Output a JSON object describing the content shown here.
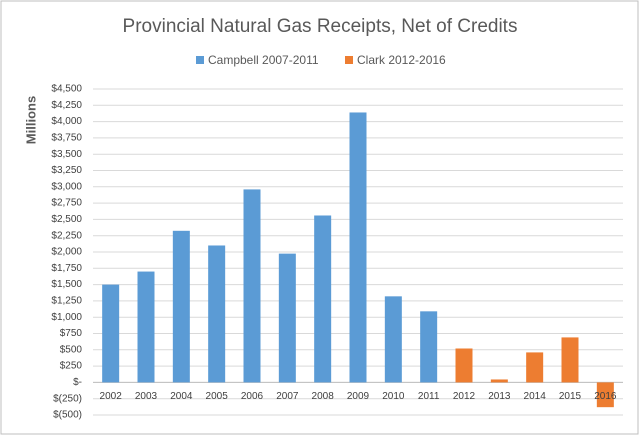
{
  "chart_data": {
    "type": "bar",
    "title": "Provincial Natural Gas Receipts, Net of Credits",
    "y_label": "Millions",
    "categories": [
      "2002",
      "2003",
      "2004",
      "2005",
      "2006",
      "2007",
      "2008",
      "2009",
      "2010",
      "2011",
      "2012",
      "2013",
      "2014",
      "2015",
      "2016"
    ],
    "series": [
      {
        "name": "Campbell 2007-2011",
        "color": "#5b9bd5",
        "values": [
          1500,
          1700,
          2325,
          2100,
          2960,
          1975,
          2560,
          4140,
          1320,
          1090,
          null,
          null,
          null,
          null,
          null
        ]
      },
      {
        "name": "Clark 2012-2016",
        "color": "#ed7d31",
        "values": [
          null,
          null,
          null,
          null,
          null,
          null,
          null,
          null,
          null,
          null,
          520,
          45,
          460,
          690,
          -380
        ]
      }
    ],
    "ylim": [
      -500,
      4500
    ],
    "yticks": [
      {
        "value": -500,
        "label": "$(500)"
      },
      {
        "value": -250,
        "label": "$(250)"
      },
      {
        "value": 0,
        "label": "$-"
      },
      {
        "value": 250,
        "label": "$250"
      },
      {
        "value": 500,
        "label": "$500"
      },
      {
        "value": 750,
        "label": "$750"
      },
      {
        "value": 1000,
        "label": "$1,000"
      },
      {
        "value": 1250,
        "label": "$1,250"
      },
      {
        "value": 1500,
        "label": "$1,500"
      },
      {
        "value": 1750,
        "label": "$1,750"
      },
      {
        "value": 2000,
        "label": "$2,000"
      },
      {
        "value": 2250,
        "label": "$2,250"
      },
      {
        "value": 2500,
        "label": "$2,500"
      },
      {
        "value": 2750,
        "label": "$2,750"
      },
      {
        "value": 3000,
        "label": "$3,000"
      },
      {
        "value": 3250,
        "label": "$3,250"
      },
      {
        "value": 3500,
        "label": "$3,500"
      },
      {
        "value": 3750,
        "label": "$3,750"
      },
      {
        "value": 4000,
        "label": "$4,000"
      },
      {
        "value": 4250,
        "label": "$4,250"
      },
      {
        "value": 4500,
        "label": "$4,500"
      }
    ],
    "grid": true
  }
}
